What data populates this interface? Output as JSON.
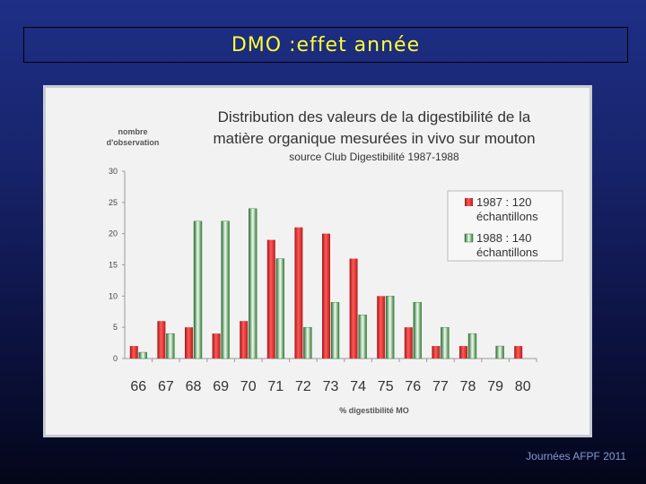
{
  "slide": {
    "title": "DMO :effet année",
    "footer": "Journées AFPF 2011"
  },
  "colors": {
    "series_1987": "#e02b2b",
    "series_1988": "#2e7d32"
  },
  "chart_data": {
    "type": "bar",
    "title": "Distribution des valeurs de la digestibilité de la",
    "title_line2": "matière organique mesurées in vivo sur mouton",
    "subtitle": "source Club Digestibilité 1987-1988",
    "ylabel_line1": "nombre",
    "ylabel_line2": "d'observation",
    "xlabel": "% digestibilité MO",
    "ylim": [
      0,
      30
    ],
    "yticks": [
      "0",
      "5",
      "10",
      "15",
      "20",
      "25",
      "30"
    ],
    "categories": [
      "66",
      "67",
      "68",
      "69",
      "70",
      "71",
      "72",
      "73",
      "74",
      "75",
      "76",
      "77",
      "78",
      "79",
      "80"
    ],
    "series": [
      {
        "name_line1": "1987 : 120",
        "name_line2": "échantillons",
        "values": [
          2,
          6,
          5,
          4,
          6,
          19,
          21,
          20,
          16,
          10,
          5,
          2,
          2,
          0,
          2
        ]
      },
      {
        "name_line1": "1988 : 140",
        "name_line2": "échantillons",
        "values": [
          1,
          4,
          22,
          22,
          24,
          16,
          5,
          9,
          7,
          10,
          9,
          5,
          4,
          2,
          0
        ]
      }
    ],
    "grid": false,
    "legend": "top-right"
  }
}
